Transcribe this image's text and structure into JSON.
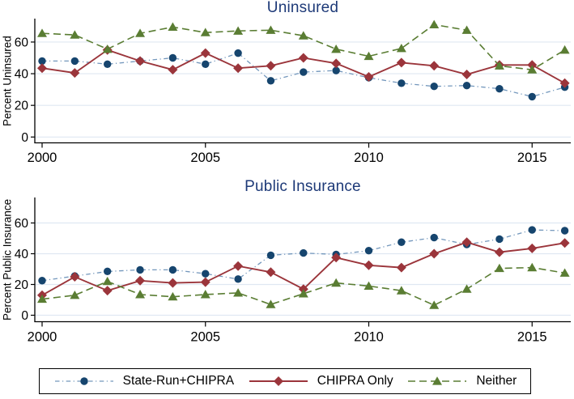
{
  "figure": {
    "background": "#ffffff",
    "axis_color": "#000000",
    "grid_color": "#dfe8f2",
    "title_color": "#1e3a78"
  },
  "legend": {
    "items": [
      {
        "label": "State-Run+CHIPRA"
      },
      {
        "label": "CHIPRA Only"
      },
      {
        "label": "Neither"
      }
    ]
  },
  "chart_data": [
    {
      "type": "line",
      "title": "Uninsured",
      "xlabel": "",
      "ylabel": "Percent Uninsured",
      "x": [
        2000,
        2001,
        2002,
        2003,
        2004,
        2005,
        2006,
        2007,
        2008,
        2009,
        2010,
        2011,
        2012,
        2013,
        2014,
        2015,
        2016
      ],
      "xticks": [
        2000,
        2005,
        2010,
        2015
      ],
      "yticks": [
        0,
        20,
        40,
        60
      ],
      "ylim": [
        0,
        75
      ],
      "grid": true,
      "legend_position": "bottom-shared",
      "series": [
        {
          "name": "State-Run+CHIPRA",
          "marker": "circle",
          "line_style": "dash-dot",
          "color": "#16456e",
          "line_color": "#7397bc",
          "values": [
            48,
            48,
            46,
            48,
            50,
            46,
            53,
            35.5,
            41,
            42,
            37.5,
            34,
            32,
            32.5,
            30.5,
            25.5,
            31.5
          ]
        },
        {
          "name": "CHIPRA Only",
          "marker": "diamond",
          "line_style": "solid",
          "color": "#9b353b",
          "line_color": "#9b353b",
          "values": [
            43.5,
            40.5,
            55,
            48,
            42.5,
            53,
            43.5,
            45,
            50,
            46.5,
            38,
            47,
            45,
            39.5,
            45.5,
            45.5,
            34
          ]
        },
        {
          "name": "Neither",
          "marker": "triangle",
          "line_style": "dash",
          "color": "#5a7d33",
          "line_color": "#5a7d33",
          "values": [
            65.5,
            64.5,
            55.5,
            65.5,
            69.5,
            66,
            67,
            67.5,
            64,
            55.5,
            51,
            56,
            71,
            67.5,
            45,
            42.5,
            55
          ]
        }
      ]
    },
    {
      "type": "line",
      "title": "Public Insurance",
      "xlabel": "",
      "ylabel": "Percent Public Insurance",
      "x": [
        2000,
        2001,
        2002,
        2003,
        2004,
        2005,
        2006,
        2007,
        2008,
        2009,
        2010,
        2011,
        2012,
        2013,
        2014,
        2015,
        2016
      ],
      "xticks": [
        2000,
        2005,
        2010,
        2015
      ],
      "yticks": [
        0,
        20,
        40,
        60
      ],
      "ylim": [
        0,
        75
      ],
      "grid": true,
      "legend_position": "bottom-shared",
      "series": [
        {
          "name": "State-Run+CHIPRA",
          "marker": "circle",
          "line_style": "dash-dot",
          "color": "#16456e",
          "line_color": "#7397bc",
          "values": [
            22.5,
            25.5,
            28.5,
            29.5,
            29.5,
            27,
            23.5,
            39,
            40.5,
            39.5,
            42,
            47.5,
            50.5,
            46,
            49.5,
            55.5,
            55
          ]
        },
        {
          "name": "CHIPRA Only",
          "marker": "diamond",
          "line_style": "solid",
          "color": "#9b353b",
          "line_color": "#9b353b",
          "values": [
            13,
            25,
            16,
            22.5,
            21,
            21.5,
            32,
            28,
            17,
            37.5,
            32.5,
            31,
            40,
            47.5,
            41,
            43.5,
            47
          ]
        },
        {
          "name": "Neither",
          "marker": "triangle",
          "line_style": "dash",
          "color": "#5a7d33",
          "line_color": "#5a7d33",
          "values": [
            10.5,
            13,
            22,
            13.5,
            12,
            13.5,
            14.5,
            7,
            14,
            21,
            19,
            16,
            6.5,
            17,
            30.5,
            31,
            27.5
          ]
        }
      ]
    }
  ]
}
